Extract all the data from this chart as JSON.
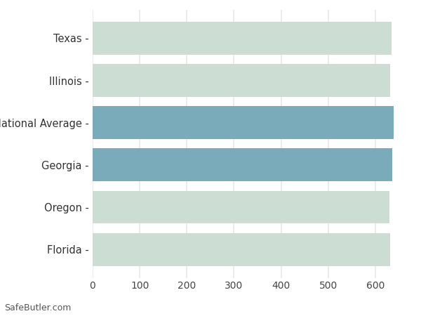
{
  "categories": [
    "Florida",
    "Oregon",
    "Georgia",
    "National Average",
    "Illinois",
    "Texas"
  ],
  "values": [
    631,
    630,
    636,
    638,
    632,
    634
  ],
  "bar_colors": [
    "#ccddd4",
    "#ccddd4",
    "#7aabba",
    "#7aabba",
    "#ccddd4",
    "#ccddd4"
  ],
  "xlim": [
    0,
    670
  ],
  "xticks": [
    0,
    100,
    200,
    300,
    400,
    500,
    600
  ],
  "background_color": "#ffffff",
  "grid_color": "#e8e8e8",
  "footer_text": "SafeButler.com",
  "bar_height": 0.78,
  "ylabel_fontsize": 10.5,
  "xlabel_fontsize": 10,
  "footer_fontsize": 9
}
